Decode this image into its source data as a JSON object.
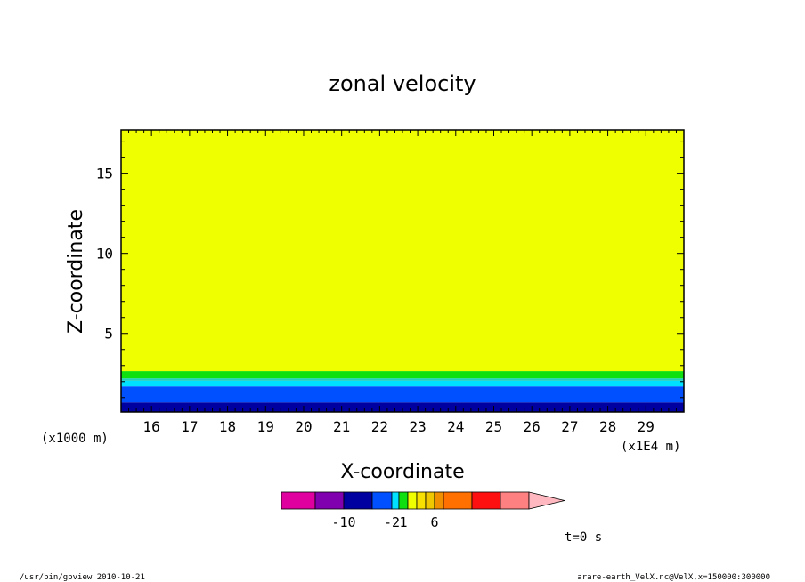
{
  "chart_data": {
    "type": "heatmap",
    "title": "zonal velocity",
    "xlabel": "X-coordinate",
    "ylabel": "Z-coordinate",
    "x_unit": "(x1E4 m)",
    "y_unit": "(x1000 m)",
    "xlim": [
      15.2,
      30.0
    ],
    "ylim": [
      0.1,
      17.7
    ],
    "x_ticks": [
      "16",
      "17",
      "18",
      "19",
      "20",
      "21",
      "22",
      "23",
      "24",
      "25",
      "26",
      "27",
      "28",
      "29"
    ],
    "y_ticks": [
      "5",
      "10",
      "15"
    ],
    "bands": [
      {
        "z_from": 0.1,
        "z_to": 0.7,
        "color": "#0000a0"
      },
      {
        "z_from": 0.7,
        "z_to": 1.7,
        "color": "#0050ff"
      },
      {
        "z_from": 1.7,
        "z_to": 2.05,
        "color": "#00e0ff"
      },
      {
        "z_from": 2.05,
        "z_to": 2.2,
        "color": "#20d0c0"
      },
      {
        "z_from": 2.2,
        "z_to": 2.65,
        "color": "#10e010"
      },
      {
        "z_from": 2.65,
        "z_to": 17.7,
        "color": "#f0ff00"
      }
    ],
    "colorbar": {
      "colors": [
        "#e000a0",
        "#8000b0",
        "#0000a0",
        "#0050ff",
        "#00e0ff",
        "#10e010",
        "#f0ff00",
        "#f8e000",
        "#f0c800",
        "#f09000",
        "#ff7000",
        "#ff1010",
        "#ff8080",
        "#ffb8c0"
      ],
      "labels": [
        {
          "text": "-10",
          "at_boundary": 2
        },
        {
          "text": "-2",
          "at_boundary": 4
        },
        {
          "text": "1",
          "at_boundary": 5.5
        },
        {
          "text": "6",
          "at_boundary": 9
        }
      ]
    }
  },
  "annotations": {
    "time": "t=0 s",
    "footer_left": "/usr/bin/gpview   2010-10-21",
    "footer_right": "arare-earth_VelX.nc@VelX,x=150000:300000"
  }
}
